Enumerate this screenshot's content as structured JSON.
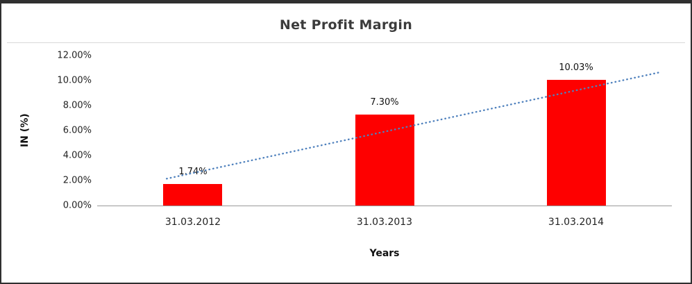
{
  "window": {
    "background": "#ffffff",
    "border_color": "#303030"
  },
  "chart_data": {
    "type": "bar",
    "title": "Net Profit Margin",
    "xlabel": "Years",
    "ylabel": "IN (%)",
    "categories": [
      "31.03.2012",
      "31.03.2013",
      "31.03.2014"
    ],
    "values": [
      1.74,
      7.3,
      10.03
    ],
    "data_labels": [
      "1.74%",
      "7.30%",
      "10.03%"
    ],
    "ylim": [
      0,
      12
    ],
    "y_tick_step": 2,
    "y_ticks": [
      "0.00%",
      "2.00%",
      "4.00%",
      "6.00%",
      "8.00%",
      "10.00%",
      "12.00%"
    ],
    "grid": "off",
    "legend": "none",
    "bar_color": "#fe0000",
    "trendline": {
      "type": "linear",
      "style": "dotted",
      "color": "#4f81bd",
      "start_pct": 2.15,
      "end_pct": 10.65
    }
  }
}
